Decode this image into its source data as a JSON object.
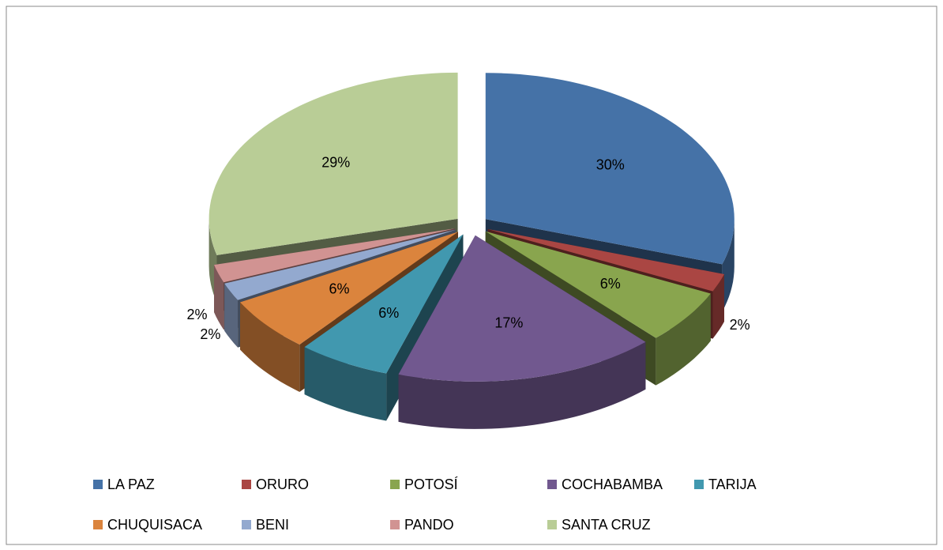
{
  "chart_data": {
    "type": "pie3d",
    "categories": [
      "LA PAZ",
      "ORURO",
      "POTOSÍ",
      "COCHABAMBA",
      "TARIJA",
      "CHUQUISACA",
      "BENI",
      "PANDO",
      "SANTA CRUZ"
    ],
    "values": [
      30,
      2,
      6,
      17,
      6,
      6,
      2,
      2,
      29
    ],
    "value_labels": [
      "30%",
      "2%",
      "6%",
      "17%",
      "6%",
      "6%",
      "2%",
      "2%",
      "29%"
    ],
    "colors": [
      "#4572a7",
      "#aa4643",
      "#89a54e",
      "#71588f",
      "#4198af",
      "#db843d",
      "#93a9cf",
      "#d19392",
      "#b9cd96"
    ],
    "legend": "bottom"
  }
}
